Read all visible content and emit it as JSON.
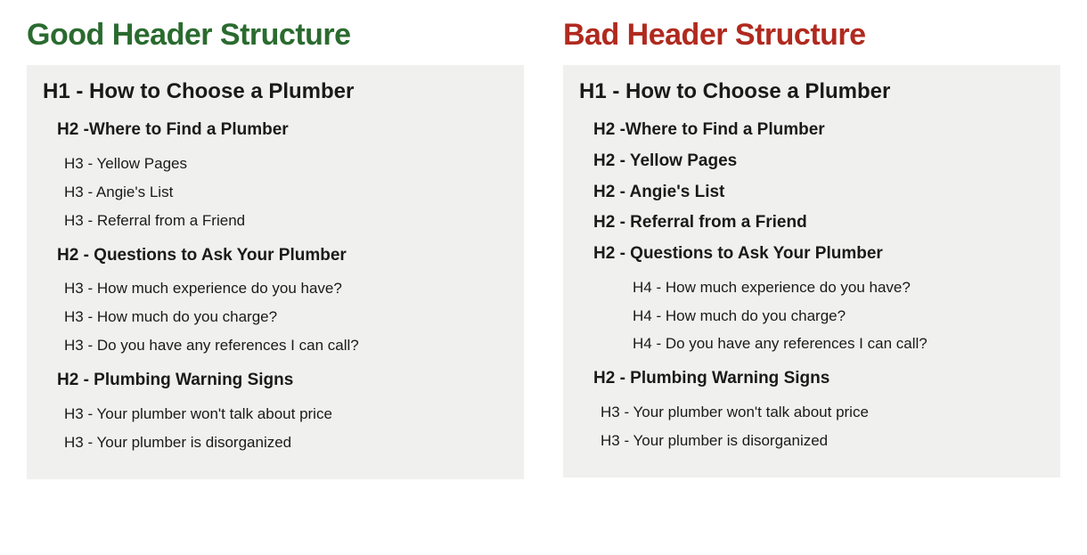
{
  "layout": {
    "page_background": "#ffffff",
    "box_background": "#f0f0ee",
    "text_color": "#1a1a1a"
  },
  "left": {
    "title": "Good Header Structure",
    "title_color": "#2a6b2f",
    "items": [
      {
        "indent": 0,
        "bold": true,
        "text": "H1 - How to Choose a Plumber",
        "spaced_top": false
      },
      {
        "indent": 1,
        "bold": true,
        "text": "H2 -Where to Find a  Plumber",
        "spaced_top": true
      },
      {
        "indent": 2,
        "bold": false,
        "text": "H3 - Yellow Pages",
        "spaced_top": true
      },
      {
        "indent": 2,
        "bold": false,
        "text": "H3 - Angie's List",
        "spaced_top": false
      },
      {
        "indent": 2,
        "bold": false,
        "text": "H3 - Referral from a Friend",
        "spaced_top": false
      },
      {
        "indent": 1,
        "bold": true,
        "text": "H2 - Questions to Ask Your Plumber",
        "spaced_top": true
      },
      {
        "indent": 2,
        "bold": false,
        "text": "H3 - How much experience do you have?",
        "spaced_top": true
      },
      {
        "indent": 2,
        "bold": false,
        "text": "H3 - How much do you charge?",
        "spaced_top": false
      },
      {
        "indent": 2,
        "bold": false,
        "text": "H3 - Do you have any references I can call?",
        "spaced_top": false
      },
      {
        "indent": 1,
        "bold": true,
        "text": "H2 - Plumbing Warning Signs",
        "spaced_top": true
      },
      {
        "indent": 2,
        "bold": false,
        "text": "H3 - Your plumber won't talk about price",
        "spaced_top": true
      },
      {
        "indent": 2,
        "bold": false,
        "text": "H3 - Your plumber is disorganized",
        "spaced_top": false
      }
    ]
  },
  "right": {
    "title": "Bad Header Structure",
    "title_color": "#b02a1f",
    "items": [
      {
        "indent": 0,
        "bold": true,
        "text": "H1 - How to Choose a Plumber",
        "spaced_top": false
      },
      {
        "indent": 1,
        "bold": true,
        "text": "H2 -Where to Find a  Plumber",
        "spaced_top": true
      },
      {
        "indent": 1,
        "bold": true,
        "text": "H2 - Yellow Pages",
        "spaced_top": false
      },
      {
        "indent": 1,
        "bold": true,
        "text": "H2 - Angie's List",
        "spaced_top": false
      },
      {
        "indent": 1,
        "bold": true,
        "text": "H2 - Referral from a Friend",
        "spaced_top": false
      },
      {
        "indent": 1,
        "bold": true,
        "text": "H2 - Questions to Ask Your Plumber",
        "spaced_top": false
      },
      {
        "indent": 3,
        "bold": false,
        "text": "H4 - How much experience do you have?",
        "spaced_top": true
      },
      {
        "indent": 3,
        "bold": false,
        "text": "H4 - How much do you charge?",
        "spaced_top": false
      },
      {
        "indent": 3,
        "bold": false,
        "text": "H4 - Do you have any references I can call?",
        "spaced_top": false
      },
      {
        "indent": 1,
        "bold": true,
        "text": "H2 - Plumbing Warning Signs",
        "spaced_top": true
      },
      {
        "indent": 2,
        "bold": false,
        "text": "H3 - Your plumber won't talk about price",
        "spaced_top": true
      },
      {
        "indent": 2,
        "bold": false,
        "text": "H3 - Your plumber is disorganized",
        "spaced_top": false
      }
    ]
  }
}
